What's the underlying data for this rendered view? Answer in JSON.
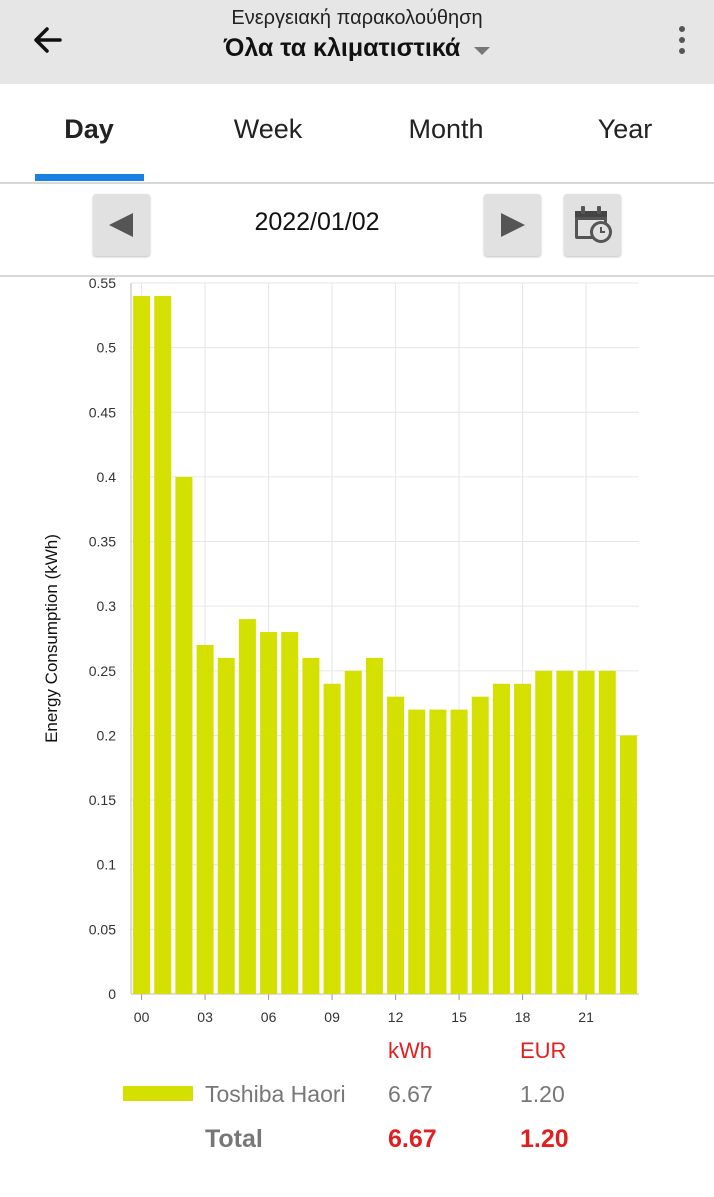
{
  "header": {
    "subtitle": "Ενεργειακή παρακολούθηση",
    "title": "Όλα τα κλιματιστικά"
  },
  "icons": {
    "back": "arrow-back-icon",
    "dropdown": "caret-down-icon",
    "more": "more-vert-icon",
    "prev": "triangle-left-icon",
    "next": "triangle-right-icon",
    "calendar": "calendar-clock-icon"
  },
  "tabs": [
    {
      "label": "Day",
      "active": true
    },
    {
      "label": "Week",
      "active": false
    },
    {
      "label": "Month",
      "active": false
    },
    {
      "label": "Year",
      "active": false
    }
  ],
  "date": "2022/01/02",
  "colors": {
    "accent": "#1a7fe0",
    "bar": "#d4e000",
    "highlight": "#e02020"
  },
  "chart_data": {
    "type": "bar",
    "ylabel": "Energy Consumption (kWh)",
    "ylim": [
      0,
      0.55
    ],
    "yticks": [
      "0",
      "0.05",
      "0.1",
      "0.15",
      "0.2",
      "0.25",
      "0.3",
      "0.35",
      "0.4",
      "0.45",
      "0.5",
      "0.55"
    ],
    "xticks": [
      "00",
      "03",
      "06",
      "09",
      "12",
      "15",
      "18",
      "21"
    ],
    "grid": true,
    "series": [
      {
        "name": "Toshiba Haori",
        "values": [
          0.54,
          0.54,
          0.4,
          0.27,
          0.26,
          0.29,
          0.28,
          0.28,
          0.26,
          0.24,
          0.25,
          0.26,
          0.23,
          0.22,
          0.22,
          0.22,
          0.23,
          0.24,
          0.24,
          0.25,
          0.25,
          0.25,
          0.25,
          0.2
        ]
      }
    ]
  },
  "legend": {
    "col_kwh": "kWh",
    "col_eur": "EUR",
    "rows": [
      {
        "name": "Toshiba Haori",
        "kwh": "6.67",
        "eur": "1.20"
      }
    ],
    "total_label": "Total",
    "total_kwh": "6.67",
    "total_eur": "1.20"
  }
}
